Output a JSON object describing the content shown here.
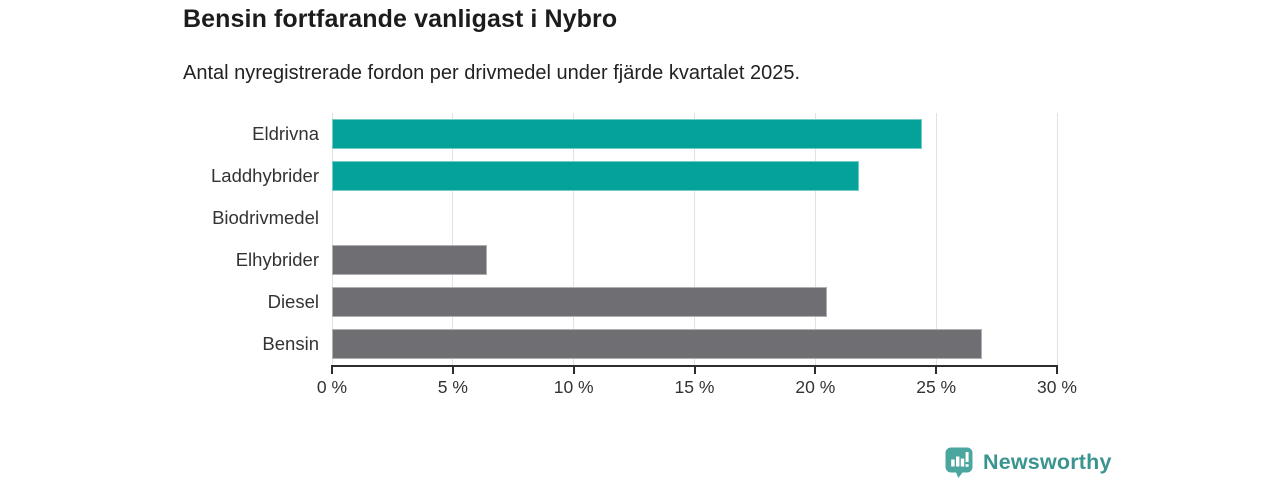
{
  "header": {
    "title": "Bensin fortfarande vanligast i Nybro",
    "subtitle": "Antal nyregistrerade fordon per drivmedel under fjärde kvartalet 2025."
  },
  "chart_data": {
    "type": "bar",
    "orientation": "horizontal",
    "categories": [
      "Eldrivna",
      "Laddhybrider",
      "Biodrivmedel",
      "Elhybrider",
      "Diesel",
      "Bensin"
    ],
    "values": [
      24.4,
      21.8,
      0,
      6.4,
      20.5,
      26.9
    ],
    "bar_colors": [
      "#05a29a",
      "#05a29a",
      "#6e6e73",
      "#6e6e73",
      "#6e6e73",
      "#6e6e73"
    ],
    "x_ticks": [
      0,
      5,
      10,
      15,
      20,
      25,
      30
    ],
    "x_tick_labels": [
      "0 %",
      "5 %",
      "10 %",
      "15 %",
      "20 %",
      "25 %",
      "30 %"
    ],
    "xlim": [
      0,
      30
    ],
    "xlabel": "",
    "ylabel": "",
    "grid": "vertical",
    "legend": "none",
    "title": "Bensin fortfarande vanligast i Nybro",
    "subtitle": "Antal nyregistrerade fordon per drivmedel under fjärde kvartalet 2025."
  },
  "colors": {
    "accent_teal": "#05a29a",
    "bar_gray": "#6e6e73",
    "gridline": "#e2e2e2",
    "axis": "#2d2d2d",
    "text": "#333333",
    "logo_icon": "#4ba6a0",
    "logo_text": "#3a948f"
  },
  "footer": {
    "brand": "Newsworthy"
  }
}
